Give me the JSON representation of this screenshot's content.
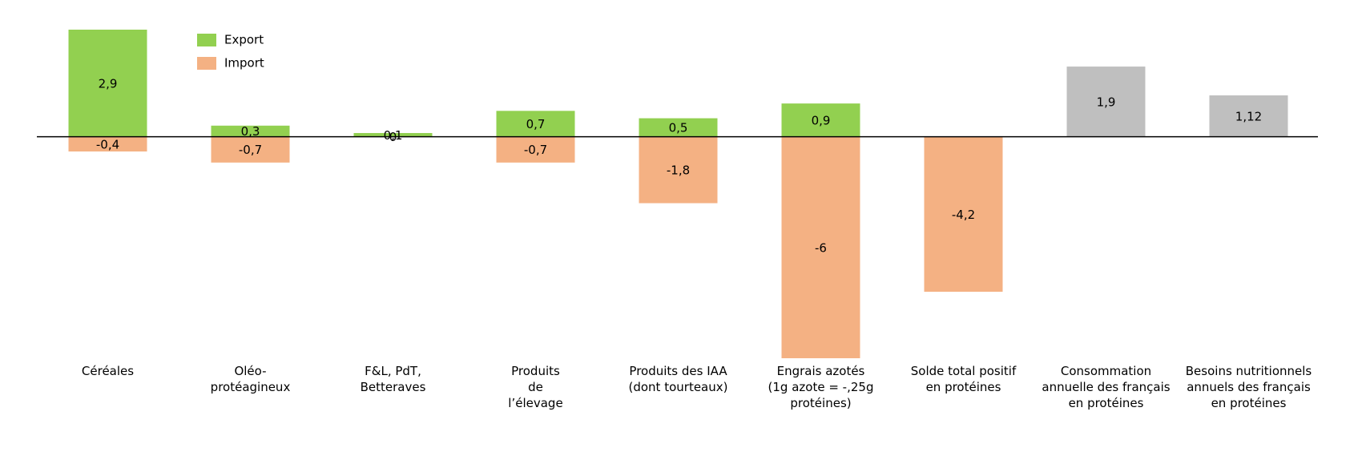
{
  "chart_data": {
    "type": "bar",
    "categories": [
      "Céréales",
      "Oléo-\nprotéagineux",
      "F&L, PdT,\nBetteraves",
      "Produits\nde\nl’élevage",
      "Produits des IAA\n(dont tourteaux)",
      "Engrais azotés\n(1g azote = -,25g\nprotéines)",
      "Solde total positif\nen protéines",
      "Consommation\nannuelle des français\nen protéines",
      "Besoins nutritionnels\nannuels des français\nen protéines"
    ],
    "series": [
      {
        "name": "Export",
        "color": "#92d050",
        "values": [
          2.9,
          0.3,
          0.1,
          0.7,
          0.5,
          0.9,
          null,
          null,
          null
        ],
        "value_labels": [
          "2,9",
          "0,3",
          "0,1",
          "0,7",
          "0,5",
          "0,9",
          null,
          null,
          null
        ]
      },
      {
        "name": "Import",
        "color": "#f4b183",
        "values": [
          -0.4,
          -0.7,
          0,
          -0.7,
          -1.8,
          -6,
          -4.2,
          null,
          null
        ],
        "value_labels": [
          "-0,4",
          "-0,7",
          "0",
          "-0,7",
          "-1,8",
          "-6",
          "-4,2",
          null,
          null
        ]
      },
      {
        "color": "#bfbfbf",
        "values": [
          null,
          null,
          null,
          null,
          null,
          null,
          null,
          1.9,
          1.12
        ],
        "value_labels": [
          null,
          null,
          null,
          null,
          null,
          null,
          null,
          "1,9",
          "1,12"
        ]
      }
    ],
    "legend": "upper left"
  }
}
